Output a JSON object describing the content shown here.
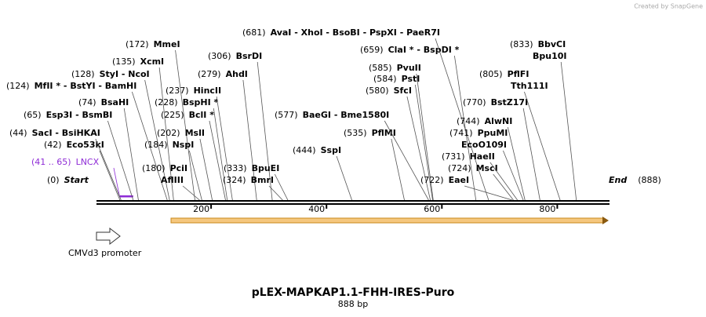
{
  "header": {
    "credit": "Created by SnapGene"
  },
  "map": {
    "title": "pLEX-MAPKAP1.1-FHH-IRES-Puro",
    "length_label": "888 bp",
    "start": {
      "value": 0,
      "label": "(0)",
      "text": "Start"
    },
    "end": {
      "value": 888,
      "label": "(888)",
      "text": "End"
    },
    "ticks": [
      200,
      400,
      600,
      800
    ],
    "feature": {
      "start": 41,
      "end": 65,
      "label": "(41 .. 65)",
      "name": "LNCX"
    },
    "promoter": "CMVd3 promoter",
    "sites": [
      {
        "pos": {
          "value": 42,
          "label": "(42)"
        },
        "names": [
          "Eco53kI"
        ]
      },
      {
        "pos": {
          "value": 44,
          "label": "(44)"
        },
        "names": [
          "SacI  - BsiHKAI"
        ]
      },
      {
        "pos": {
          "value": 65,
          "label": "(65)"
        },
        "names": [
          "Esp3I  - BsmBI"
        ]
      },
      {
        "pos": {
          "value": 74,
          "label": "(74)"
        },
        "names": [
          "BsaHI"
        ]
      },
      {
        "pos": {
          "value": 124,
          "label": "(124)"
        },
        "names": [
          "MfII * - BstYI  - BamHI"
        ]
      },
      {
        "pos": {
          "value": 128,
          "label": "(128)"
        },
        "names": [
          "StyI  - NcoI"
        ]
      },
      {
        "pos": {
          "value": 135,
          "label": "(135)"
        },
        "names": [
          "XcmI"
        ]
      },
      {
        "pos": {
          "value": 172,
          "label": "(172)"
        },
        "names": [
          "MmeI"
        ]
      },
      {
        "pos": {
          "value": 180,
          "label": "(180)"
        },
        "names": [
          "PciI",
          "AflIII"
        ]
      },
      {
        "pos": {
          "value": 184,
          "label": "(184)"
        },
        "names": [
          "NspI"
        ]
      },
      {
        "pos": {
          "value": 202,
          "label": "(202)"
        },
        "names": [
          "MslI"
        ]
      },
      {
        "pos": {
          "value": 225,
          "label": "(225)"
        },
        "names": [
          "BclI *"
        ]
      },
      {
        "pos": {
          "value": 228,
          "label": "(228)"
        },
        "names": [
          "BspHI *"
        ]
      },
      {
        "pos": {
          "value": 237,
          "label": "(237)"
        },
        "names": [
          "HincII"
        ]
      },
      {
        "pos": {
          "value": 279,
          "label": "(279)"
        },
        "names": [
          "AhdI"
        ]
      },
      {
        "pos": {
          "value": 306,
          "label": "(306)"
        },
        "names": [
          "BsrDI"
        ]
      },
      {
        "pos": {
          "value": 324,
          "label": "(324)"
        },
        "names": [
          "BmrI"
        ]
      },
      {
        "pos": {
          "value": 333,
          "label": "(333)"
        },
        "names": [
          "BpuEI"
        ]
      },
      {
        "pos": {
          "value": 444,
          "label": "(444)"
        },
        "names": [
          "SspI"
        ]
      },
      {
        "pos": {
          "value": 535,
          "label": "(535)"
        },
        "names": [
          "PflMI"
        ]
      },
      {
        "pos": {
          "value": 577,
          "label": "(577)"
        },
        "names": [
          "BaeGI  - Bme1580I"
        ]
      },
      {
        "pos": {
          "value": 580,
          "label": "(580)"
        },
        "names": [
          "SfcI"
        ]
      },
      {
        "pos": {
          "value": 584,
          "label": "(584)"
        },
        "names": [
          "PstI"
        ]
      },
      {
        "pos": {
          "value": 585,
          "label": "(585)"
        },
        "names": [
          "PvuII"
        ]
      },
      {
        "pos": {
          "value": 659,
          "label": "(659)"
        },
        "names": [
          "ClaI * - BspDI *"
        ]
      },
      {
        "pos": {
          "value": 681,
          "label": "(681)"
        },
        "names": [
          "AvaI  - XhoI  - BsoBI  - PspXI  - PaeR7I"
        ]
      },
      {
        "pos": {
          "value": 722,
          "label": "(722)"
        },
        "names": [
          "EaeI"
        ]
      },
      {
        "pos": {
          "value": 724,
          "label": "(724)"
        },
        "names": [
          "MscI"
        ]
      },
      {
        "pos": {
          "value": 731,
          "label": "(731)"
        },
        "names": [
          "HaeII"
        ]
      },
      {
        "pos": {
          "value": 741,
          "label": "(741)"
        },
        "names": [
          "PpuMI",
          "EcoO109I"
        ]
      },
      {
        "pos": {
          "value": 744,
          "label": "(744)"
        },
        "names": [
          "AlwNI"
        ]
      },
      {
        "pos": {
          "value": 770,
          "label": "(770)"
        },
        "names": [
          "BstZ17I"
        ]
      },
      {
        "pos": {
          "value": 805,
          "label": "(805)"
        },
        "names": [
          "PflFI",
          "Tth111I"
        ]
      },
      {
        "pos": {
          "value": 833,
          "label": "(833)"
        },
        "names": [
          "BbvCI",
          "Bpu10I"
        ]
      }
    ]
  }
}
